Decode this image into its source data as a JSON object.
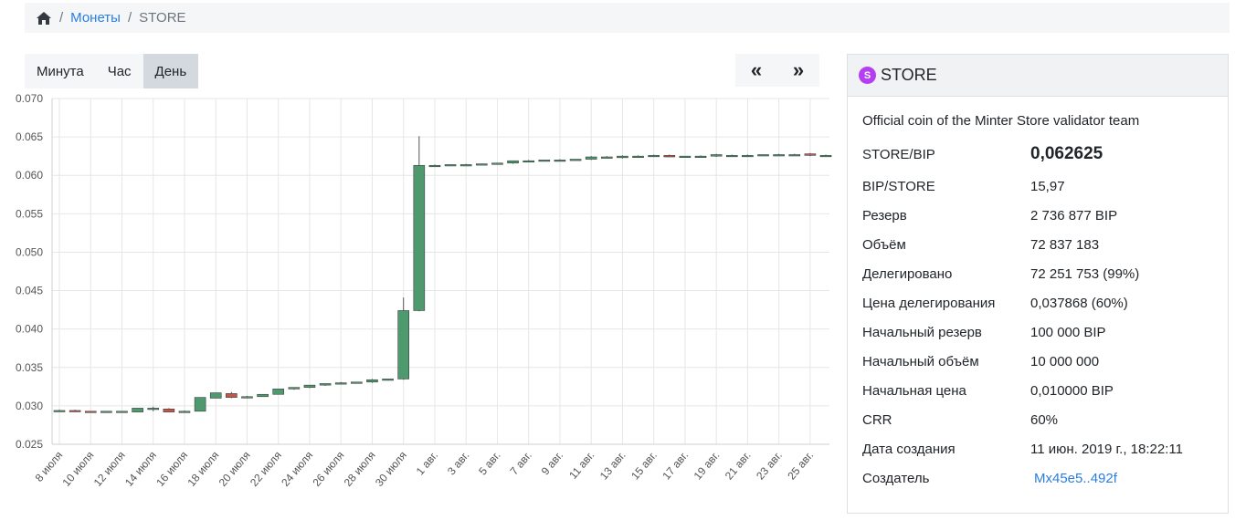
{
  "breadcrumb": {
    "home_icon": "home-icon",
    "coins": "Монеты",
    "current": "STORE",
    "separator": "/"
  },
  "periods": [
    "Минута",
    "Час",
    "День"
  ],
  "active_period": "День",
  "nav": {
    "prev": "«",
    "next": "»"
  },
  "coin": {
    "badge": "S",
    "badge_color": "#b43ef2",
    "name": "STORE",
    "description": "Official coin of the Minter Store validator team",
    "rows": [
      {
        "label": "STORE/BIP",
        "value": "0,062625",
        "big": true
      },
      {
        "label": "BIP/STORE",
        "value": "15,97"
      },
      {
        "label": "Резерв",
        "value": "2 736 877 BIP"
      },
      {
        "label": "Объём",
        "value": "72 837 183"
      },
      {
        "label": "Делегировано",
        "value": "72 251 753 (99%)"
      },
      {
        "label": "Цена делегирования",
        "value": "0,037868 (60%)"
      },
      {
        "label": "Начальный резерв",
        "value": "100 000 BIP"
      },
      {
        "label": "Начальный объём",
        "value": "10 000 000"
      },
      {
        "label": "Начальная цена",
        "value": "0,010000 BIP"
      },
      {
        "label": "CRR",
        "value": "60%"
      },
      {
        "label": "Дата создания",
        "value": "11 июн. 2019 г., 18:22:11"
      },
      {
        "label": "Создатель",
        "value": "Mx45e5..492f",
        "link": true
      }
    ]
  },
  "chart_data": {
    "type": "candlestick",
    "ylim": [
      0.025,
      0.07
    ],
    "yticks": [
      "0.025",
      "0.030",
      "0.035",
      "0.040",
      "0.045",
      "0.050",
      "0.055",
      "0.060",
      "0.065",
      "0.070"
    ],
    "xtick_labels": [
      "8 июля",
      "10 июля",
      "12 июля",
      "14 июля",
      "16 июля",
      "18 июля",
      "20 июля",
      "22 июля",
      "24 июля",
      "26 июля",
      "28 июля",
      "30 июля",
      "1 авг.",
      "3 авг.",
      "5 авг.",
      "7 авг.",
      "9 авг.",
      "11 авг.",
      "13 авг.",
      "15 авг.",
      "17 авг.",
      "19 авг.",
      "21 авг.",
      "23 авг.",
      "25 авг."
    ],
    "up_color": "#4e9a6e",
    "down_color": "#c0574a",
    "grid": true,
    "candles": [
      {
        "date": "8 июля",
        "open": 0.0294,
        "high": 0.0295,
        "low": 0.0294,
        "close": 0.0294
      },
      {
        "date": "9 июля",
        "open": 0.0294,
        "high": 0.0295,
        "low": 0.0292,
        "close": 0.0293
      },
      {
        "date": "10 июля",
        "open": 0.0293,
        "high": 0.0293,
        "low": 0.0292,
        "close": 0.0292
      },
      {
        "date": "11 июля",
        "open": 0.0292,
        "high": 0.0293,
        "low": 0.0292,
        "close": 0.0293
      },
      {
        "date": "12 июля",
        "open": 0.0292,
        "high": 0.0293,
        "low": 0.0292,
        "close": 0.0293
      },
      {
        "date": "13 июля",
        "open": 0.0292,
        "high": 0.0297,
        "low": 0.0292,
        "close": 0.0297
      },
      {
        "date": "14 июля",
        "open": 0.0296,
        "high": 0.0299,
        "low": 0.0293,
        "close": 0.0297
      },
      {
        "date": "15 июля",
        "open": 0.0296,
        "high": 0.0297,
        "low": 0.0292,
        "close": 0.0292
      },
      {
        "date": "16 июля",
        "open": 0.0293,
        "high": 0.0294,
        "low": 0.0292,
        "close": 0.0293
      },
      {
        "date": "17 июля",
        "open": 0.0293,
        "high": 0.0311,
        "low": 0.0293,
        "close": 0.0311
      },
      {
        "date": "18 июля",
        "open": 0.031,
        "high": 0.0317,
        "low": 0.031,
        "close": 0.0317
      },
      {
        "date": "19 июля",
        "open": 0.0316,
        "high": 0.0318,
        "low": 0.031,
        "close": 0.0311
      },
      {
        "date": "20 июля",
        "open": 0.0311,
        "high": 0.0313,
        "low": 0.031,
        "close": 0.0312
      },
      {
        "date": "21 июля",
        "open": 0.0312,
        "high": 0.0315,
        "low": 0.0312,
        "close": 0.0315
      },
      {
        "date": "22 июля",
        "open": 0.0315,
        "high": 0.0322,
        "low": 0.0315,
        "close": 0.0322
      },
      {
        "date": "23 июля",
        "open": 0.0322,
        "high": 0.0324,
        "low": 0.0321,
        "close": 0.0324
      },
      {
        "date": "24 июля",
        "open": 0.0324,
        "high": 0.0327,
        "low": 0.0323,
        "close": 0.0327
      },
      {
        "date": "25 июля",
        "open": 0.0327,
        "high": 0.0329,
        "low": 0.0326,
        "close": 0.0329
      },
      {
        "date": "26 июля",
        "open": 0.0329,
        "high": 0.0331,
        "low": 0.0328,
        "close": 0.033
      },
      {
        "date": "27 июля",
        "open": 0.033,
        "high": 0.0331,
        "low": 0.0329,
        "close": 0.0331
      },
      {
        "date": "28 июля",
        "open": 0.0331,
        "high": 0.0335,
        "low": 0.033,
        "close": 0.0334
      },
      {
        "date": "29 июля",
        "open": 0.0334,
        "high": 0.0335,
        "low": 0.0333,
        "close": 0.0335
      },
      {
        "date": "30 июля",
        "open": 0.0335,
        "high": 0.0441,
        "low": 0.0334,
        "close": 0.0424
      },
      {
        "date": "31 июля",
        "open": 0.0424,
        "high": 0.0651,
        "low": 0.0423,
        "close": 0.0613
      },
      {
        "date": "1 авг.",
        "open": 0.0613,
        "high": 0.0614,
        "low": 0.0612,
        "close": 0.0613
      },
      {
        "date": "2 авг.",
        "open": 0.0613,
        "high": 0.0614,
        "low": 0.0613,
        "close": 0.0614
      },
      {
        "date": "3 авг.",
        "open": 0.0614,
        "high": 0.0615,
        "low": 0.0613,
        "close": 0.0614
      },
      {
        "date": "4 авг.",
        "open": 0.0614,
        "high": 0.0615,
        "low": 0.0614,
        "close": 0.0615
      },
      {
        "date": "5 авг.",
        "open": 0.0615,
        "high": 0.0616,
        "low": 0.0614,
        "close": 0.0616
      },
      {
        "date": "6 авг.",
        "open": 0.0616,
        "high": 0.0619,
        "low": 0.0615,
        "close": 0.0619
      },
      {
        "date": "7 авг.",
        "open": 0.0619,
        "high": 0.062,
        "low": 0.0618,
        "close": 0.0619
      },
      {
        "date": "8 авг.",
        "open": 0.0619,
        "high": 0.062,
        "low": 0.0619,
        "close": 0.062
      },
      {
        "date": "9 авг.",
        "open": 0.062,
        "high": 0.0621,
        "low": 0.0619,
        "close": 0.062
      },
      {
        "date": "10 авг.",
        "open": 0.062,
        "high": 0.0621,
        "low": 0.062,
        "close": 0.0621
      },
      {
        "date": "11 авг.",
        "open": 0.0621,
        "high": 0.0625,
        "low": 0.062,
        "close": 0.0624
      },
      {
        "date": "12 авг.",
        "open": 0.0623,
        "high": 0.0625,
        "low": 0.0622,
        "close": 0.0624
      },
      {
        "date": "13 авг.",
        "open": 0.0623,
        "high": 0.0626,
        "low": 0.0622,
        "close": 0.0625
      },
      {
        "date": "14 авг.",
        "open": 0.0625,
        "high": 0.0626,
        "low": 0.0624,
        "close": 0.0625
      },
      {
        "date": "15 авг.",
        "open": 0.0625,
        "high": 0.0627,
        "low": 0.0624,
        "close": 0.0626
      },
      {
        "date": "16 авг.",
        "open": 0.0626,
        "high": 0.0627,
        "low": 0.0624,
        "close": 0.0624
      },
      {
        "date": "17 авг.",
        "open": 0.0624,
        "high": 0.0625,
        "low": 0.0623,
        "close": 0.0625
      },
      {
        "date": "18 авг.",
        "open": 0.0625,
        "high": 0.0626,
        "low": 0.0624,
        "close": 0.0625
      },
      {
        "date": "19 авг.",
        "open": 0.0625,
        "high": 0.0628,
        "low": 0.0624,
        "close": 0.0627
      },
      {
        "date": "20 авг.",
        "open": 0.0626,
        "high": 0.0627,
        "low": 0.0625,
        "close": 0.0626
      },
      {
        "date": "21 авг.",
        "open": 0.0626,
        "high": 0.0627,
        "low": 0.0625,
        "close": 0.0626
      },
      {
        "date": "22 авг.",
        "open": 0.0626,
        "high": 0.0627,
        "low": 0.0626,
        "close": 0.0627
      },
      {
        "date": "23 авг.",
        "open": 0.0627,
        "high": 0.0628,
        "low": 0.0626,
        "close": 0.0627
      },
      {
        "date": "24 авг.",
        "open": 0.0627,
        "high": 0.0628,
        "low": 0.0626,
        "close": 0.0627
      },
      {
        "date": "25 авг.",
        "open": 0.0628,
        "high": 0.0629,
        "low": 0.0625,
        "close": 0.0626
      },
      {
        "date": "26 авг.",
        "open": 0.0626,
        "high": 0.0627,
        "low": 0.0625,
        "close": 0.0626
      }
    ]
  }
}
